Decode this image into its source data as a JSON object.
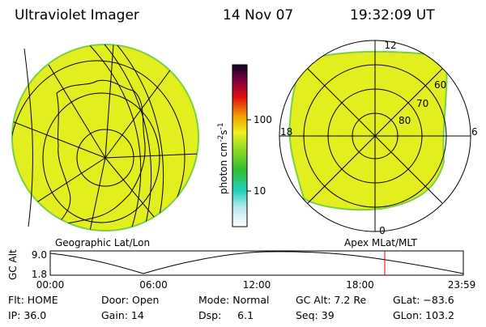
{
  "header": {
    "title": "Ultraviolet Imager",
    "date": "14 Nov 07",
    "time": "19:32:09 UT"
  },
  "colorbar": {
    "label": "photon cm",
    "exp1": "-2",
    "unit2": "s",
    "exp2": "-1",
    "ticks": [
      "100",
      "10"
    ]
  },
  "left_map": {
    "label": "Geographic Lat/Lon"
  },
  "right_map": {
    "label": "Apex MLat/MLT",
    "mlt_labels": [
      "12",
      "6",
      "0",
      "18"
    ],
    "lat_labels": [
      "60",
      "70",
      "80"
    ]
  },
  "altitude_plot": {
    "y_label": "GC Alt",
    "yticks": [
      "9.0",
      "1.8"
    ],
    "xticks": [
      "00:00",
      "06:00",
      "12:00",
      "18:00",
      "23:59"
    ]
  },
  "footer": {
    "rows": [
      [
        "Flt: HOME",
        "Door: Open",
        "Mode: Normal",
        "GC Alt: 7.2 Re",
        "GLat: −83.6"
      ],
      [
        "IP: 36.0",
        "Gain: 14",
        "Dsp:     6.1",
        "Seq: 39",
        "GLon: 103.2"
      ]
    ]
  }
}
